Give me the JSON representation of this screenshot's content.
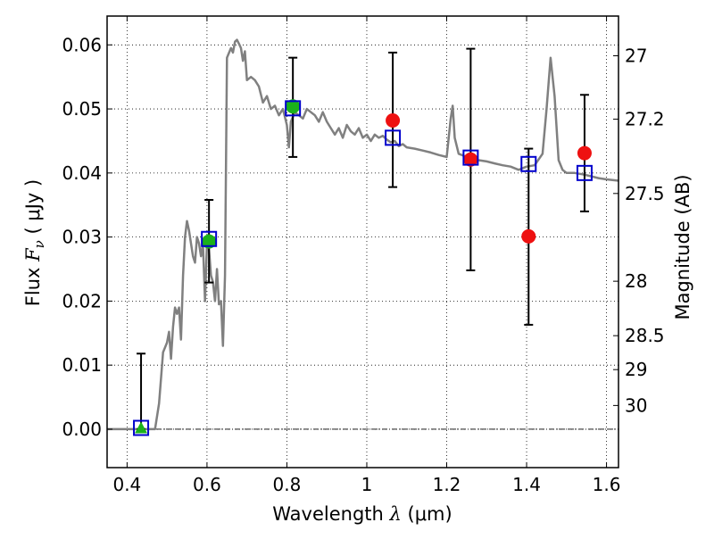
{
  "chart_data": {
    "type": "scatter",
    "xlabel": {
      "prefix": "Wavelength  ",
      "symbol": "λ",
      "unit": " (μm)"
    },
    "ylabel": {
      "prefix": "Flux  ",
      "symbol": "F",
      "subscript": "ν",
      "unit": "  ( μJy )"
    },
    "ylabel_right": "Magnitude (AB)",
    "xlim": [
      0.35,
      1.63
    ],
    "ylim": [
      -0.006,
      0.0645
    ],
    "x_ticks": [
      {
        "v": 0.4,
        "label": "0.4"
      },
      {
        "v": 0.6,
        "label": "0.6"
      },
      {
        "v": 0.8,
        "label": "0.8"
      },
      {
        "v": 1.0,
        "label": "1"
      },
      {
        "v": 1.2,
        "label": "1.2"
      },
      {
        "v": 1.4,
        "label": "1.4"
      },
      {
        "v": 1.6,
        "label": "1.6"
      }
    ],
    "y_ticks": [
      {
        "v": 0.0,
        "label": "0.00"
      },
      {
        "v": 0.01,
        "label": "0.01"
      },
      {
        "v": 0.02,
        "label": "0.02"
      },
      {
        "v": 0.03,
        "label": "0.03"
      },
      {
        "v": 0.04,
        "label": "0.04"
      },
      {
        "v": 0.05,
        "label": "0.05"
      },
      {
        "v": 0.06,
        "label": "0.06"
      }
    ],
    "y_right_ticks": [
      {
        "flux": 0.0583,
        "label": "27"
      },
      {
        "flux": 0.0484,
        "label": "27.2"
      },
      {
        "flux": 0.0368,
        "label": "27.5"
      },
      {
        "flux": 0.0231,
        "label": "28"
      },
      {
        "flux": 0.0146,
        "label": "28.5"
      },
      {
        "flux": 0.0093,
        "label": "29"
      },
      {
        "flux": 0.0037,
        "label": "30"
      }
    ],
    "grid": true,
    "zero_line": true,
    "series": [
      {
        "kind": "line",
        "color": "#808080",
        "x": [
          0.35,
          0.44,
          0.455,
          0.47,
          0.48,
          0.49,
          0.5,
          0.505,
          0.51,
          0.515,
          0.52,
          0.525,
          0.53,
          0.535,
          0.54,
          0.545,
          0.55,
          0.555,
          0.56,
          0.565,
          0.57,
          0.575,
          0.58,
          0.585,
          0.59,
          0.595,
          0.6,
          0.605,
          0.61,
          0.615,
          0.62,
          0.625,
          0.63,
          0.635,
          0.64,
          0.645,
          0.65,
          0.66,
          0.665,
          0.67,
          0.675,
          0.68,
          0.685,
          0.69,
          0.695,
          0.7,
          0.71,
          0.72,
          0.73,
          0.74,
          0.75,
          0.76,
          0.77,
          0.78,
          0.79,
          0.8,
          0.805,
          0.81,
          0.82,
          0.83,
          0.84,
          0.85,
          0.86,
          0.87,
          0.88,
          0.89,
          0.9,
          0.91,
          0.92,
          0.93,
          0.94,
          0.95,
          0.96,
          0.97,
          0.98,
          0.99,
          1.0,
          1.01,
          1.02,
          1.03,
          1.04,
          1.05,
          1.06,
          1.07,
          1.08,
          1.09,
          1.1,
          1.12,
          1.14,
          1.16,
          1.18,
          1.2,
          1.21,
          1.215,
          1.22,
          1.23,
          1.25,
          1.28,
          1.3,
          1.32,
          1.34,
          1.36,
          1.38,
          1.4,
          1.42,
          1.44,
          1.45,
          1.46,
          1.47,
          1.48,
          1.49,
          1.5,
          1.52,
          1.54,
          1.56,
          1.58,
          1.6,
          1.63
        ],
        "y": [
          0,
          0,
          0,
          0,
          0.004,
          0.012,
          0.0135,
          0.0152,
          0.011,
          0.016,
          0.019,
          0.018,
          0.019,
          0.014,
          0.024,
          0.03,
          0.0325,
          0.031,
          0.029,
          0.027,
          0.026,
          0.03,
          0.029,
          0.027,
          0.029,
          0.02,
          0.029,
          0.028,
          0.024,
          0.023,
          0.02,
          0.025,
          0.0195,
          0.02,
          0.013,
          0.024,
          0.058,
          0.0595,
          0.0588,
          0.0605,
          0.0608,
          0.0602,
          0.0595,
          0.0575,
          0.059,
          0.0545,
          0.055,
          0.0545,
          0.0535,
          0.051,
          0.052,
          0.05,
          0.0505,
          0.049,
          0.05,
          0.0475,
          0.044,
          0.048,
          0.0495,
          0.049,
          0.0485,
          0.05,
          0.0495,
          0.049,
          0.048,
          0.0495,
          0.048,
          0.047,
          0.046,
          0.047,
          0.0455,
          0.0475,
          0.0465,
          0.046,
          0.047,
          0.0455,
          0.046,
          0.045,
          0.046,
          0.0455,
          0.0458,
          0.0452,
          0.0448,
          0.045,
          0.0442,
          0.0445,
          0.044,
          0.0438,
          0.0435,
          0.0432,
          0.0428,
          0.0425,
          0.0485,
          0.0505,
          0.0455,
          0.043,
          0.0425,
          0.042,
          0.0418,
          0.0415,
          0.0412,
          0.041,
          0.0405,
          0.041,
          0.0412,
          0.043,
          0.05,
          0.058,
          0.052,
          0.042,
          0.0405,
          0.04,
          0.04,
          0.0398,
          0.0395,
          0.0392,
          0.039,
          0.0388
        ]
      },
      {
        "kind": "errorbars",
        "color": "#000000",
        "points": [
          {
            "x": 0.435,
            "lo": 0.0,
            "hi": 0.0118
          },
          {
            "x": 0.605,
            "lo": 0.0229,
            "hi": 0.0358
          },
          {
            "x": 0.815,
            "lo": 0.0425,
            "hi": 0.058
          },
          {
            "x": 1.065,
            "lo": 0.0378,
            "hi": 0.0588
          },
          {
            "x": 1.26,
            "lo": 0.0248,
            "hi": 0.0594
          },
          {
            "x": 1.405,
            "lo": 0.0163,
            "hi": 0.0438
          },
          {
            "x": 1.545,
            "lo": 0.034,
            "hi": 0.0522
          }
        ]
      },
      {
        "kind": "markers",
        "marker": "circle",
        "color": "#1bb11b",
        "points": [
          {
            "x": 0.605,
            "y": 0.0293
          },
          {
            "x": 0.815,
            "y": 0.0504
          }
        ]
      },
      {
        "kind": "markers",
        "marker": "triangle",
        "color": "#1bb11b",
        "points": [
          {
            "x": 0.435,
            "y": 0.0002
          }
        ]
      },
      {
        "kind": "markers",
        "marker": "circle",
        "color": "#ee1111",
        "points": [
          {
            "x": 1.065,
            "y": 0.0482
          },
          {
            "x": 1.26,
            "y": 0.0421
          },
          {
            "x": 1.405,
            "y": 0.0301
          },
          {
            "x": 1.545,
            "y": 0.0431
          }
        ]
      },
      {
        "kind": "markers",
        "marker": "square",
        "color": "#0000cc",
        "points": [
          {
            "x": 0.435,
            "y": 0.0002
          },
          {
            "x": 0.605,
            "y": 0.0297
          },
          {
            "x": 0.815,
            "y": 0.0501
          },
          {
            "x": 1.065,
            "y": 0.0455
          },
          {
            "x": 1.26,
            "y": 0.0424
          },
          {
            "x": 1.405,
            "y": 0.0414
          },
          {
            "x": 1.545,
            "y": 0.04
          }
        ]
      }
    ]
  }
}
